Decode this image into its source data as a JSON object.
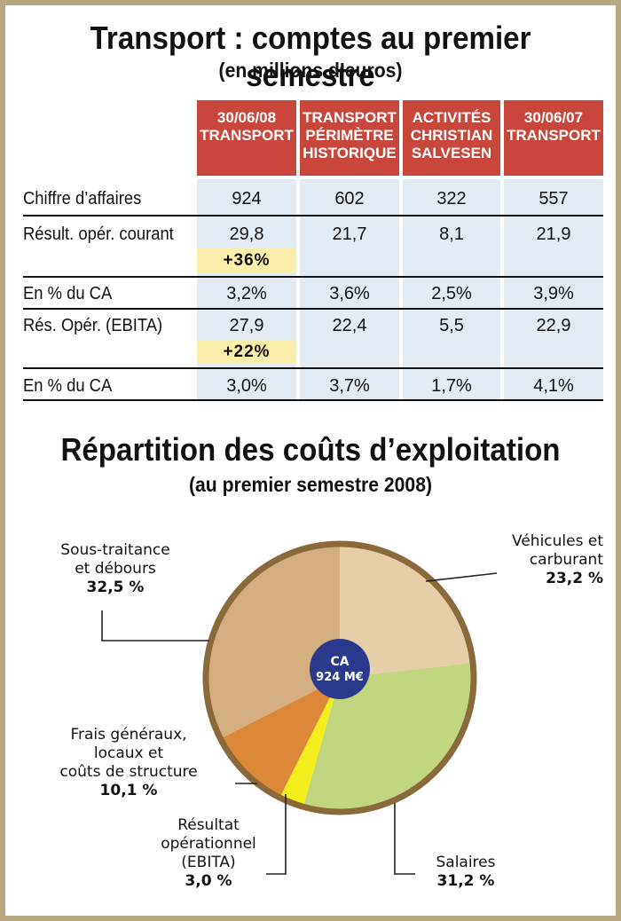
{
  "table": {
    "title": "Transport : comptes au premier semestre",
    "subtitle": "(en millions d’euros)",
    "columns": [
      "30/06/08\nTRANSPORT",
      "TRANSPORT\nPÉRIMÈTRE\nHISTORIQUE",
      "ACTIVITÉS\nCHRISTIAN\nSALVESEN",
      "30/06/07\nTRANSPORT"
    ],
    "rows": [
      {
        "label": "Chiffre d’affaires",
        "values": [
          "924",
          "602",
          "322",
          "557"
        ]
      },
      {
        "label": "Résult. opér. courant",
        "values": [
          "29,8",
          "21,7",
          "8,1",
          "21,9"
        ],
        "highlight": "+36%"
      },
      {
        "label": "En % du CA",
        "values": [
          "3,2%",
          "3,6%",
          "2,5%",
          "3,9%"
        ]
      },
      {
        "label": "Rés. Opér. (EBITA)",
        "values": [
          "27,9",
          "22,4",
          "5,5",
          "22,9"
        ],
        "highlight": "+22%"
      },
      {
        "label": "En % du CA",
        "values": [
          "3,0%",
          "3,7%",
          "1,7%",
          "4,1%"
        ]
      }
    ]
  },
  "chart_data": {
    "type": "pie",
    "title": "Répartition des coûts d’exploitation",
    "subtitle": "(au premier semestre 2008)",
    "center_label": {
      "line1": "CA",
      "line2": "924 M€"
    },
    "slices": [
      {
        "name": "Véhicules et carburant",
        "label_lines": [
          "Véhicules et",
          "carburant"
        ],
        "value": 23.2,
        "display": "23,2 %",
        "color": "#e6cfa8"
      },
      {
        "name": "Salaires",
        "label_lines": [
          "Salaires"
        ],
        "value": 31.2,
        "display": "31,2 %",
        "color": "#c2d67f"
      },
      {
        "name": "Résultat opérationnel (EBITA)",
        "label_lines": [
          "Résultat",
          "opérationnel",
          "(EBITA)"
        ],
        "value": 3.0,
        "display": "3,0 %",
        "color": "#f5ee1e"
      },
      {
        "name": "Frais généraux, locaux et coûts de structure",
        "label_lines": [
          "Frais généraux,",
          "locaux et",
          "coûts de structure"
        ],
        "value": 10.1,
        "display": "10,1 %",
        "color": "#dd8838"
      },
      {
        "name": "Sous-traitance et débours",
        "label_lines": [
          "Sous-traitance",
          "et débours"
        ],
        "value": 32.5,
        "display": "32,5 %",
        "color": "#d4ae7f"
      }
    ],
    "rim_color": "#8a6a3a",
    "center_color": "#2b3a8c"
  }
}
